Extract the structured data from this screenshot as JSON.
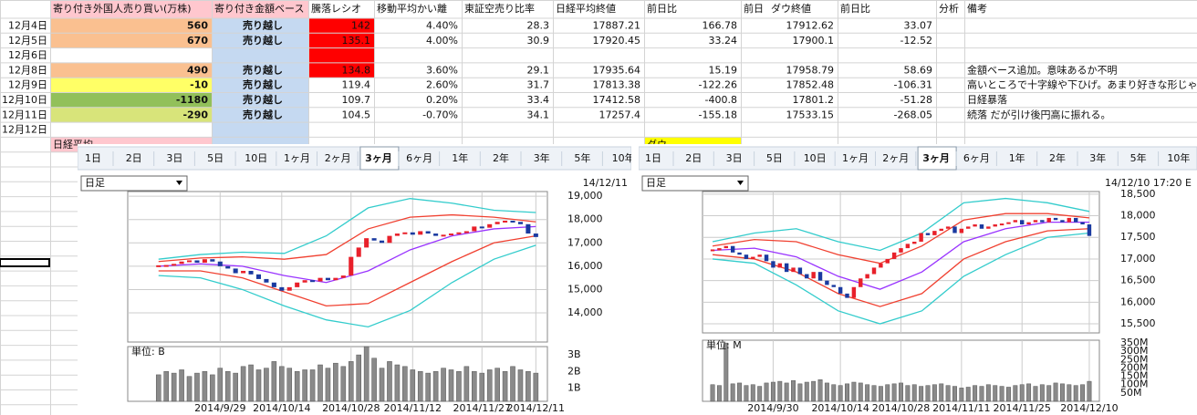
{
  "sheet": {
    "headers": [
      "寄り付き外国人売り買い(万株)",
      "寄り付き金額ベース",
      "騰落レシオ",
      "移動平均かい離",
      "東証空売り比率",
      "日経平均終値",
      "前日比",
      "ダウ終値",
      "前日比",
      "分析",
      "備考"
    ],
    "header_note": "前日",
    "rows": [
      {
        "date": "12月4日",
        "values": [
          "560",
          "売り越し",
          "142",
          "4.40%",
          "28.3",
          "17887.21",
          "166.78",
          "17912.62",
          "33.07"
        ],
        "fill_a": "#fac090",
        "fill_c": "#ff0000"
      },
      {
        "date": "12月5日",
        "values": [
          "670",
          "売り越し",
          "135.1",
          "4.00%",
          "30.9",
          "17920.45",
          "33.24",
          "17900.1",
          "-12.52"
        ],
        "fill_a": "#fac090",
        "fill_c": "#ff0000"
      },
      {
        "date": "12月6日",
        "fill_c": "#ff0000"
      },
      {
        "date": "12月8日",
        "values": [
          "490",
          "売り越し",
          "134.8",
          "3.60%",
          "29.1",
          "17935.64",
          "15.19",
          "17958.79",
          "58.69"
        ],
        "note": "金額ベース追加。意味あるか不明",
        "fill_a": "#fac090",
        "fill_c": "#ff0000"
      },
      {
        "date": "12月9日",
        "values": [
          "-10",
          "売り越し",
          "119.4",
          "2.60%",
          "31.7",
          "17813.38",
          "-122.26",
          "17852.48",
          "-106.31"
        ],
        "note": "高いところで十字線や下ひげ。あまり好きな形じゃ",
        "fill_a": "#ffff66"
      },
      {
        "date": "12月10日",
        "values": [
          "-1180",
          "売り越し",
          "109.7",
          "0.20%",
          "33.4",
          "17412.58",
          "-400.8",
          "17801.2",
          "-51.28"
        ],
        "note": "日経暴落",
        "fill_a": "#92c05a"
      },
      {
        "date": "12月11日",
        "values": [
          "-290",
          "売り越し",
          "104.5",
          "-0.70%",
          "34.1",
          "17257.4",
          "-155.18",
          "17533.15",
          "-268.05"
        ],
        "note": "続落 だが引け後円高に振れる。",
        "fill_a": "#d8e47a"
      },
      {
        "date": "12月12日"
      }
    ],
    "nikkei_label": "日経平均",
    "dow_label": "ダウ"
  },
  "charts": [
    {
      "type": "candlestick",
      "tabs": [
        "1日",
        "2日",
        "3日",
        "5日",
        "10日",
        "1ヶ月",
        "2ヶ月",
        "3ヶ月",
        "6ヶ月",
        "1年",
        "2年",
        "3年",
        "5年",
        "10年"
      ],
      "selected_tab": 7,
      "period": "日足",
      "timestamp": "14/12/11",
      "ylim": [
        12750,
        19200
      ],
      "yticks": [
        {
          "value": 14000,
          "label": "14,000"
        },
        {
          "value": 15000,
          "label": "15,000"
        },
        {
          "value": 16000,
          "label": "16,000"
        },
        {
          "value": 17000,
          "label": "17,000"
        },
        {
          "value": 18000,
          "label": "18,000"
        },
        {
          "value": 19000,
          "label": "19,000"
        }
      ],
      "xlim": [
        -4,
        50.5
      ],
      "xticks": [
        {
          "value": 8,
          "label": "2014/9/29"
        },
        {
          "value": 16,
          "label": "2014/10/14"
        },
        {
          "value": 25,
          "label": "2014/10/28"
        },
        {
          "value": 33,
          "label": "2014/11/12"
        },
        {
          "value": 42,
          "label": "2014/11/27"
        },
        {
          "value": 49,
          "label": "2014/12/11"
        }
      ],
      "close": [
        16000,
        16050,
        16100,
        16200,
        16250,
        16150,
        16300,
        16200,
        16000,
        15900,
        15700,
        15800,
        15650,
        15450,
        15300,
        15100,
        14950,
        15100,
        15300,
        15400,
        15350,
        15500,
        15400,
        15500,
        15600,
        16400,
        16800,
        17200,
        17100,
        17000,
        17300,
        17400,
        17450,
        17350,
        17500,
        17400,
        17300,
        17350,
        17400,
        17450,
        17500,
        17700,
        17650,
        17800,
        17900,
        17950,
        17900,
        17800,
        17400,
        17250
      ],
      "bands": [
        {
          "color": "#33cccc",
          "values": [
            16300,
            16500,
            16600,
            16550,
            17300,
            18500,
            18900,
            18700,
            18400,
            18300
          ]
        },
        {
          "color": "#f04030",
          "values": [
            16200,
            16350,
            16400,
            16300,
            16500,
            17600,
            18100,
            18200,
            18100,
            17900
          ]
        },
        {
          "color": "#9933ff",
          "values": [
            16000,
            16100,
            16000,
            15600,
            15300,
            15800,
            16700,
            17300,
            17600,
            17700
          ]
        },
        {
          "color": "#f04030",
          "values": [
            15800,
            15800,
            15500,
            14900,
            14300,
            14400,
            15300,
            16200,
            17000,
            17300
          ]
        },
        {
          "color": "#33cccc",
          "values": [
            15600,
            15500,
            15000,
            14300,
            13700,
            13400,
            14100,
            15300,
            16300,
            16900
          ]
        }
      ],
      "volume": {
        "unit_label": "単位: B",
        "ylim": [
          0.2,
          3.5
        ],
        "yticks": [
          {
            "value": 1,
            "label": "1B"
          },
          {
            "value": 2,
            "label": "2B"
          },
          {
            "value": 3,
            "label": "3B"
          }
        ],
        "values": [
          1.8,
          2.0,
          1.9,
          2.1,
          1.7,
          1.9,
          2.0,
          1.8,
          2.2,
          2.0,
          1.9,
          2.3,
          2.4,
          2.1,
          2.2,
          2.6,
          2.3,
          2.2,
          2.0,
          2.1,
          2.1,
          2.4,
          2.2,
          2.5,
          2.3,
          2.6,
          3.0,
          3.5,
          2.8,
          2.2,
          2.6,
          2.4,
          2.3,
          2.1,
          2.0,
          1.9,
          2.0,
          2.2,
          2.1,
          2.0,
          2.3,
          2.0,
          1.9,
          2.1,
          2.2,
          2.0,
          2.3,
          2.1,
          2.0,
          1.9
        ]
      }
    },
    {
      "type": "candlestick",
      "tabs": [
        "1日",
        "2日",
        "3日",
        "5日",
        "10日",
        "1ヶ月",
        "2ヶ月",
        "3ヶ月",
        "6ヶ月",
        "1年",
        "2年",
        "3年",
        "5年",
        "10年"
      ],
      "selected_tab": 7,
      "period": "日足",
      "timestamp": "14/12/10 17:20 E",
      "ylim": [
        15290,
        18560
      ],
      "yticks": [
        {
          "value": 15500,
          "label": "15,500"
        },
        {
          "value": 16000,
          "label": "16,000"
        },
        {
          "value": 16500,
          "label": "16,500"
        },
        {
          "value": 17000,
          "label": "17,000"
        },
        {
          "value": 17500,
          "label": "17,500"
        },
        {
          "value": 18000,
          "label": "18,000"
        },
        {
          "value": 18500,
          "label": "18,500"
        }
      ],
      "xlim": [
        -1.5,
        57.5
      ],
      "xticks": [
        {
          "value": 9,
          "label": "2014/9/30"
        },
        {
          "value": 19,
          "label": "2014/10/14"
        },
        {
          "value": 28,
          "label": "2014/10/28"
        },
        {
          "value": 37,
          "label": "2014/11/11"
        },
        {
          "value": 46,
          "label": "2014/11/25"
        },
        {
          "value": 56,
          "label": "2014/12/10"
        }
      ],
      "close": [
        17200,
        17250,
        17300,
        17150,
        17100,
        17000,
        17050,
        17100,
        16950,
        16800,
        16900,
        16700,
        16800,
        16650,
        16550,
        16700,
        16500,
        16400,
        16350,
        16200,
        16100,
        16350,
        16550,
        16650,
        16800,
        16900,
        17000,
        17150,
        17250,
        17350,
        17400,
        17600,
        17550,
        17650,
        17700,
        17750,
        17600,
        17700,
        17750,
        17800,
        17700,
        17750,
        17800,
        17820,
        17850,
        17900,
        17800,
        17850,
        17900,
        17850,
        17950,
        17900,
        17850,
        17950,
        17850,
        17800,
        17533
      ],
      "bands": [
        {
          "color": "#33cccc",
          "values": [
            17400,
            17600,
            17700,
            17400,
            17200,
            17600,
            18300,
            18400,
            18300,
            18100
          ]
        },
        {
          "color": "#f04030",
          "values": [
            17300,
            17450,
            17400,
            17100,
            16900,
            17300,
            17900,
            18050,
            18050,
            17950
          ]
        },
        {
          "color": "#9933ff",
          "values": [
            17200,
            17250,
            17050,
            16600,
            16300,
            16700,
            17400,
            17700,
            17850,
            17850
          ]
        },
        {
          "color": "#f04030",
          "values": [
            17100,
            17000,
            16700,
            16200,
            15900,
            16200,
            17000,
            17400,
            17650,
            17700
          ]
        },
        {
          "color": "#33cccc",
          "values": [
            17000,
            16900,
            16400,
            15800,
            15500,
            15800,
            16600,
            17100,
            17500,
            17600
          ]
        }
      ],
      "volume": {
        "unit_label": "単位: M",
        "ylim": [
          0,
          367
        ],
        "yticks": [
          {
            "value": 50,
            "label": "50M"
          },
          {
            "value": 100,
            "label": "100M"
          },
          {
            "value": 150,
            "label": "150M"
          },
          {
            "value": 200,
            "label": "200M"
          },
          {
            "value": 250,
            "label": "250M"
          },
          {
            "value": 300,
            "label": "300M"
          },
          {
            "value": 350,
            "label": "350M"
          }
        ],
        "values": [
          100,
          95,
          350,
          105,
          110,
          95,
          100,
          90,
          110,
          115,
          120,
          110,
          125,
          105,
          115,
          120,
          130,
          110,
          100,
          95,
          105,
          115,
          110,
          100,
          95,
          90,
          100,
          105,
          110,
          95,
          100,
          90,
          95,
          100,
          105,
          95,
          90,
          80,
          85,
          95,
          90,
          100,
          95,
          90,
          85,
          95,
          100,
          105,
          90,
          100,
          95,
          110,
          105,
          100,
          95,
          100,
          120
        ]
      }
    }
  ]
}
